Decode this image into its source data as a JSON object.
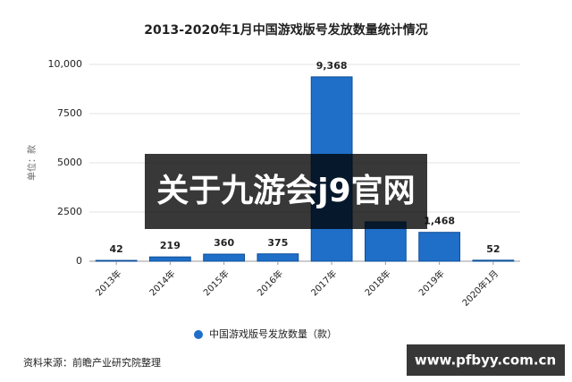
{
  "chart_data": {
    "type": "bar",
    "title": "2013-2020年1月中国游戏版号发放数量统计情况",
    "y_axis_label": "单位：款",
    "categories": [
      "2013年",
      "2014年",
      "2015年",
      "2016年",
      "2017年",
      "2018年",
      "2019年",
      "2020年1月"
    ],
    "series": [
      {
        "name": "中国游戏版号发放数量（款）",
        "color": "#1f6fc8",
        "values": [
          42,
          219,
          360,
          375,
          9368,
          2000,
          1468,
          52
        ],
        "value_labels": [
          "42",
          "219",
          "360",
          "375",
          "9,368",
          null,
          "1,468",
          "52"
        ]
      }
    ],
    "ylim": [
      0,
      10000
    ],
    "yticks": [
      0,
      2500,
      5000,
      7500,
      {
        "value": 10000,
        "label": "10,000"
      }
    ],
    "grid": true,
    "legend": "bottom",
    "source": "资料来源：前瞻产业研究院整理"
  },
  "overlay": {
    "banner": "关于九游会j9官网",
    "url": "www.pfbyy.com.cn"
  }
}
